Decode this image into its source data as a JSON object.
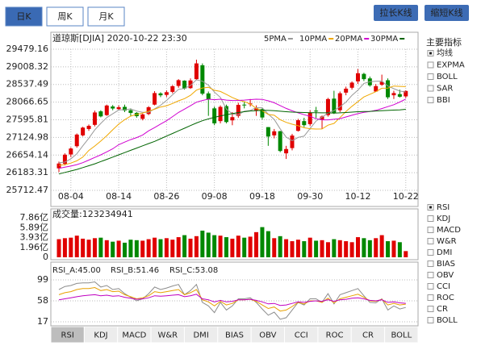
{
  "tabs": {
    "items": [
      "日K",
      "周K",
      "月K"
    ],
    "selected": 0
  },
  "buttons": [
    "拉长K线",
    "缩短K线"
  ],
  "main_indicators": {
    "title": "主要指标",
    "items": [
      "均线",
      "EXPMA",
      "BOLL",
      "SAR",
      "BBI"
    ],
    "checked": 0
  },
  "sub_indicators": {
    "items": [
      "RSI",
      "KDJ",
      "MACD",
      "W&R",
      "DMI",
      "BIAS",
      "OBV",
      "CCI",
      "ROC",
      "CR",
      "BOLL"
    ],
    "checked": 0
  },
  "bottom_tabs": {
    "items": [
      "RSI",
      "KDJ",
      "MACD",
      "W&R",
      "DMI",
      "BIAS",
      "OBV",
      "CCI",
      "ROC",
      "CR",
      "BOLL"
    ],
    "selected": 0
  },
  "chart_data": [
    {
      "type": "candlestick",
      "title": "道琼斯[DJIA] 2020-10-22 23:30",
      "categories": [
        null,
        null,
        "08-04",
        null,
        null,
        null,
        null,
        null,
        null,
        null,
        "08-14",
        null,
        null,
        null,
        null,
        null,
        null,
        null,
        "08-26",
        null,
        null,
        null,
        null,
        null,
        null,
        null,
        "09-08",
        null,
        null,
        null,
        null,
        null,
        null,
        null,
        "09-18",
        null,
        null,
        null,
        null,
        null,
        null,
        null,
        "09-30",
        null,
        null,
        null,
        null,
        null,
        null,
        null,
        "10-12",
        null,
        null,
        null,
        null,
        null,
        null,
        null,
        "10-22"
      ],
      "open": [
        26300,
        26420,
        26670,
        26890,
        27180,
        27350,
        27460,
        27820,
        27720,
        27950,
        27880,
        27940,
        27850,
        27780,
        27620,
        27750,
        28000,
        28300,
        28260,
        28340,
        28500,
        28640,
        28440,
        28680,
        29050,
        28300,
        27900,
        27560,
        27960,
        27580,
        27700,
        28000,
        28010,
        27850,
        27880,
        27400,
        27180,
        27290,
        26700,
        26840,
        27300,
        27560,
        27480,
        27840,
        27600,
        27720,
        28160,
        27850,
        28320,
        28450,
        28620,
        28820,
        28700,
        28350,
        28530,
        28650,
        28250,
        28280,
        28220
      ],
      "high": [
        26480,
        26700,
        26860,
        27230,
        27410,
        27470,
        27840,
        27850,
        28000,
        27990,
        27980,
        28000,
        27900,
        27800,
        27760,
        27960,
        28360,
        28330,
        28380,
        28520,
        28680,
        28650,
        28700,
        29200,
        29100,
        28350,
        27950,
        27980,
        28000,
        27800,
        28050,
        28080,
        28150,
        27980,
        27900,
        27400,
        27350,
        27300,
        26900,
        27220,
        27620,
        27650,
        27850,
        27940,
        27710,
        28180,
        28370,
        28350,
        28480,
        28620,
        28950,
        28850,
        28750,
        28550,
        28800,
        28700,
        28370,
        28400,
        28380
      ],
      "low": [
        26200,
        26380,
        26600,
        26850,
        27150,
        27300,
        27420,
        27660,
        27700,
        27850,
        27850,
        27800,
        27700,
        27650,
        27580,
        27720,
        27980,
        28200,
        28200,
        28300,
        28450,
        28400,
        28420,
        28650,
        28250,
        27700,
        27450,
        27500,
        27500,
        27450,
        27650,
        27900,
        27950,
        27700,
        27600,
        26900,
        27100,
        26730,
        26550,
        26780,
        27280,
        27400,
        27430,
        27640,
        27350,
        27680,
        27750,
        27800,
        28250,
        28400,
        28550,
        28630,
        28480,
        28350,
        28500,
        28150,
        28150,
        28190,
        28180
      ],
      "close": [
        26428,
        26664,
        26828,
        27201,
        27386,
        27433,
        27791,
        27686,
        27976,
        27896,
        27931,
        27844,
        27778,
        27692,
        27739,
        27930,
        28308,
        28249,
        28332,
        28492,
        28653,
        28430,
        28645,
        29100,
        28292,
        28133,
        27500,
        27940,
        27535,
        27666,
        27993,
        27995,
        28032,
        27902,
        27657,
        27148,
        27288,
        26763,
        26815,
        27174,
        27584,
        27452,
        27782,
        27817,
        27683,
        28149,
        27773,
        28303,
        28426,
        28587,
        28838,
        28680,
        28515,
        28494,
        28607,
        28196,
        28309,
        28211,
        28364
      ],
      "up_color": "#e00000",
      "down_color": "#008800",
      "series": [
        {
          "name": "5PMA",
          "color": "#999999",
          "values": [
            26449,
            26465,
            26554,
            26687,
            26901,
            27102,
            27328,
            27499,
            27654,
            27756,
            27856,
            27867,
            27885,
            27828,
            27797,
            27797,
            27889,
            27984,
            28112,
            28262,
            28407,
            28431,
            28510,
            28664,
            28624,
            28520,
            28334,
            28193,
            27880,
            27755,
            27727,
            27826,
            27844,
            27918,
            27916,
            27747,
            27605,
            27352,
            27134,
            27038,
            27125,
            27158,
            27361,
            27562,
            27664,
            27777,
            27841,
            27945,
            28067,
            28248,
            28385,
            28567,
            28609,
            28623,
            28627,
            28498,
            28424,
            28363,
            28337
          ]
        },
        {
          "name": "10PMA",
          "color": "#f0a800",
          "values": [
            26380,
            26400,
            26440,
            26500,
            26600,
            26776,
            26897,
            27027,
            27171,
            27329,
            27479,
            27598,
            27692,
            27741,
            27777,
            27827,
            27878,
            27935,
            27970,
            28030,
            28102,
            28160,
            28247,
            28388,
            28443,
            28464,
            28383,
            28352,
            28272,
            28190,
            28124,
            28080,
            28019,
            27899,
            27836,
            27737,
            27716,
            27598,
            27526,
            27477,
            27436,
            27382,
            27357,
            27348,
            27351,
            27451,
            27500,
            27653,
            27815,
            27956,
            28081,
            28204,
            28277,
            28345,
            28438,
            28442,
            28496,
            28486,
            28480
          ]
        },
        {
          "name": "20PMA",
          "color": "#d000d0",
          "values": [
            26300,
            26330,
            26360,
            26400,
            26450,
            26520,
            26590,
            26660,
            26740,
            26820,
            26930,
            26999,
            27066,
            27121,
            27189,
            27302,
            27388,
            27481,
            27571,
            27680,
            27791,
            27879,
            27970,
            28065,
            28110,
            28146,
            28131,
            28144,
            28121,
            28110,
            28113,
            28120,
            28133,
            28144,
            28140,
            28101,
            28050,
            27975,
            27899,
            27834,
            27780,
            27731,
            27688,
            27624,
            27594,
            27594,
            27608,
            27626,
            27671,
            27717,
            27759,
            27793,
            27817,
            27847,
            27895,
            27947,
            27998,
            28070,
            28148
          ]
        },
        {
          "name": "30PMA",
          "color": "#006400",
          "values": [
            26150,
            26190,
            26230,
            26270,
            26320,
            26370,
            26420,
            26480,
            26540,
            26600,
            26660,
            26720,
            26780,
            26840,
            26900,
            26960,
            27020,
            27090,
            27160,
            27230,
            27300,
            27370,
            27440,
            27510,
            27570,
            27620,
            27660,
            27700,
            27730,
            27760,
            27790,
            27810,
            27830,
            27840,
            27850,
            27845,
            27840,
            27825,
            27810,
            27800,
            27795,
            27790,
            27785,
            27785,
            27780,
            27780,
            27775,
            27780,
            27790,
            27800,
            27810,
            27815,
            27820,
            27830,
            27840,
            27845,
            27855,
            27860,
            27875
          ]
        }
      ],
      "ylim": [
        25712.47,
        29479.16
      ],
      "yticks": [
        29479.16,
        29008.32,
        28537.49,
        28066.65,
        27595.81,
        27124.98,
        26654.14,
        26183.31,
        25712.47
      ],
      "grid": true
    },
    {
      "type": "bar",
      "title": "成交量:123234941",
      "values": [
        3.6,
        3.8,
        3.9,
        4.3,
        3.7,
        3.5,
        3.8,
        3.9,
        3.4,
        3.1,
        3.3,
        2.9,
        3.5,
        3.4,
        3.3,
        3.6,
        3.9,
        3.6,
        3.8,
        3.5,
        4.0,
        4.4,
        3.7,
        4.2,
        5.3,
        4.9,
        4.4,
        4.3,
        4.0,
        3.7,
        4.3,
        3.9,
        4.1,
        5.0,
        6.0,
        5.2,
        3.8,
        4.2,
        3.6,
        3.2,
        3.5,
        3.2,
        3.9,
        3.3,
        3.4,
        3.0,
        3.6,
        3.4,
        3.2,
        3.0,
        4.0,
        3.8,
        3.4,
        3.8,
        4.4,
        3.2,
        3.3,
        3.0,
        1.23
      ],
      "ylim": [
        0,
        7.86
      ],
      "yticks": [
        {
          "value": 7.86,
          "label": "7.86亿"
        },
        {
          "value": 5.89,
          "label": "5.89亿"
        },
        {
          "value": 3.93,
          "label": "3.93亿"
        },
        {
          "value": 1.96,
          "label": "1.96亿"
        },
        0
      ]
    },
    {
      "type": "line",
      "series": [
        {
          "name": "RSI_A:45.00",
          "color": "#8c8c8c",
          "values": [
            80,
            86,
            88,
            92,
            93,
            93,
            95,
            85,
            88,
            80,
            82,
            72,
            65,
            58,
            62,
            72,
            85,
            80,
            83,
            87,
            90,
            70,
            78,
            90,
            55,
            48,
            35,
            55,
            40,
            48,
            62,
            62,
            64,
            55,
            42,
            30,
            36,
            22,
            25,
            40,
            55,
            50,
            62,
            62,
            55,
            72,
            52,
            70,
            74,
            78,
            82,
            68,
            55,
            54,
            62,
            40,
            48,
            42,
            45
          ]
        },
        {
          "name": "RSI_B:51.46",
          "color": "#e8a000",
          "values": [
            70,
            74,
            76,
            80,
            82,
            82,
            84,
            78,
            80,
            76,
            77,
            70,
            66,
            62,
            64,
            68,
            76,
            74,
            76,
            78,
            80,
            70,
            74,
            80,
            60,
            56,
            48,
            57,
            50,
            53,
            60,
            60,
            61,
            57,
            50,
            43,
            46,
            38,
            40,
            47,
            55,
            52,
            58,
            58,
            55,
            63,
            54,
            62,
            65,
            68,
            71,
            65,
            58,
            57,
            61,
            50,
            53,
            50,
            51.46
          ]
        },
        {
          "name": "RSI_C:53.08",
          "color": "#c000c0",
          "values": [
            60,
            62,
            64,
            66,
            68,
            69,
            70,
            68,
            69,
            67,
            68,
            65,
            63,
            61,
            62,
            64,
            68,
            67,
            68,
            69,
            70,
            66,
            68,
            71,
            62,
            60,
            56,
            59,
            56,
            57,
            60,
            60,
            61,
            59,
            56,
            52,
            53,
            49,
            50,
            53,
            56,
            55,
            57,
            58,
            57,
            60,
            57,
            60,
            61,
            63,
            64,
            62,
            59,
            58,
            60,
            55,
            56,
            54,
            53.08
          ]
        }
      ],
      "ylim": [
        17,
        99
      ],
      "yticks": [
        99,
        58,
        17
      ],
      "grid": true
    }
  ]
}
